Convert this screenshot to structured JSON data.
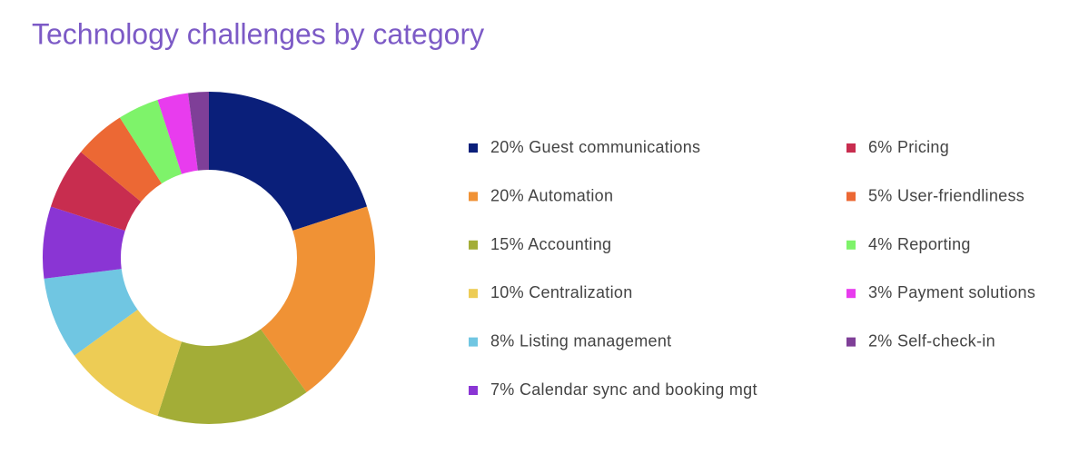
{
  "chart_data": {
    "type": "donut",
    "title": "Technology challenges by category",
    "categories": [
      "Guest communications",
      "Automation",
      "Accounting",
      "Centralization",
      "Listing management",
      "Calendar sync and booking mgt",
      "Pricing",
      "User-friendliness",
      "Reporting",
      "Payment solutions",
      "Self-check-in"
    ],
    "values": [
      20,
      20,
      15,
      10,
      8,
      7,
      6,
      5,
      4,
      3,
      2
    ],
    "value_labels": [
      "20%",
      "20%",
      "15%",
      "10%",
      "8%",
      "7%",
      "6%",
      "5%",
      "4%",
      "3%",
      "2%"
    ],
    "colors": [
      "#0a1f7a",
      "#f09235",
      "#a3ad37",
      "#edcc55",
      "#70c6e2",
      "#8a35d4",
      "#c82d4f",
      "#ec6834",
      "#7ef36a",
      "#e83cee",
      "#7f3f98"
    ]
  }
}
